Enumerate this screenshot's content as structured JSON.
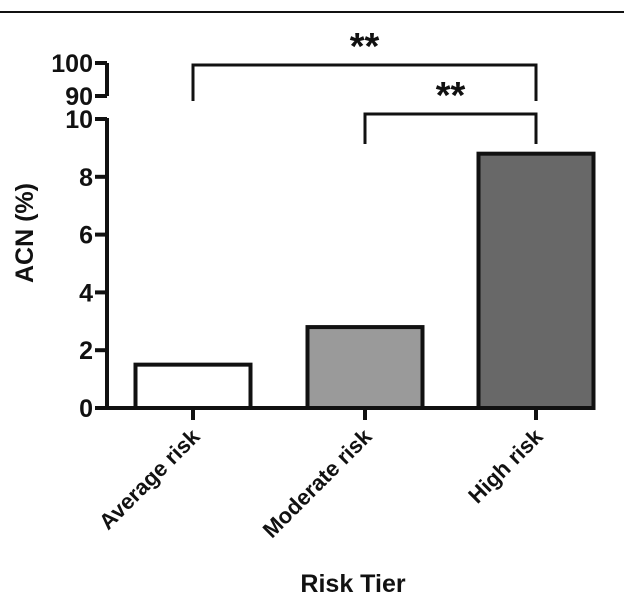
{
  "chart_data": {
    "type": "bar",
    "xlabel": "Risk Tier",
    "ylabel": "ACN (%)",
    "categories": [
      "Average risk",
      "Moderate risk",
      "High risk"
    ],
    "values": [
      1.5,
      2.8,
      8.8
    ],
    "colors": [
      "#ffffff",
      "#9a9a9a",
      "#686868"
    ],
    "ylim": [
      0,
      10
    ],
    "yticks": [
      "0",
      "2",
      "4",
      "6",
      "8",
      "10"
    ],
    "upper_axis_ticks": [
      "90",
      "100"
    ],
    "axis_break": true,
    "grid": false,
    "significance": [
      {
        "label": "**",
        "from": "Average risk",
        "to": "High risk"
      },
      {
        "label": "**",
        "from": "Moderate risk",
        "to": "High risk"
      }
    ]
  }
}
